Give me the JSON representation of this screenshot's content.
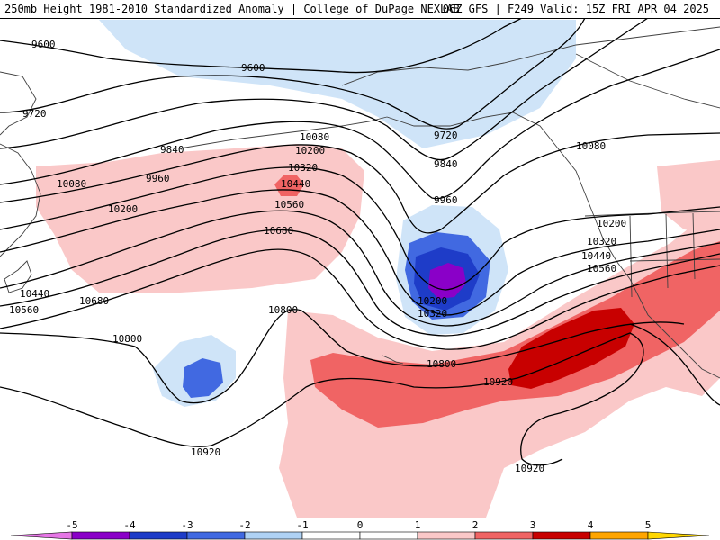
{
  "header": {
    "title_left": "250mb Height 1981-2010 Standardized Anomaly | College of DuPage NEXLAB",
    "title_right": "06Z GFS | F249 Valid: 15Z FRI APR 04 2025"
  },
  "colorbar": {
    "ticks": [
      "-5",
      "-4",
      "-3",
      "-2",
      "-1",
      "0",
      "1",
      "2",
      "3",
      "4",
      "5"
    ],
    "colors": [
      "#e676e6",
      "#8a00c8",
      "#1e3cc8",
      "#4169e1",
      "#afd2f5",
      "#ffffff",
      "#ffffff",
      "#fac8c8",
      "#f06464",
      "#c80000",
      "#ffa500",
      "#ffd700"
    ]
  },
  "contours": {
    "labels": [
      "9600",
      "9600",
      "9720",
      "9720",
      "9840",
      "9840",
      "9960",
      "9960",
      "10080",
      "10080",
      "10080",
      "10200",
      "10200",
      "10200",
      "10320",
      "10320",
      "10320",
      "10440",
      "10440",
      "10440",
      "10560",
      "10560",
      "10560",
      "10680",
      "10680",
      "10800",
      "10800",
      "10800",
      "10920",
      "10920",
      "10920",
      "10200",
      "10320"
    ]
  },
  "colors": {
    "land_outline": "#404040",
    "contour_line": "#000000"
  }
}
